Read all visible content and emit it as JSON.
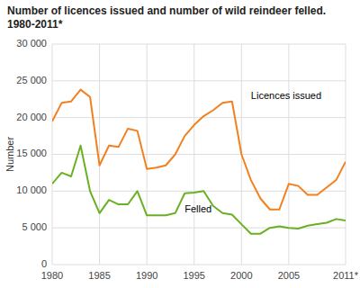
{
  "chart_data": {
    "type": "line",
    "title": "Number of licences issued and number of wild reindeer felled. 1980-2011*",
    "y_label": "Number",
    "x": [
      1980,
      1981,
      1982,
      1983,
      1984,
      1985,
      1986,
      1987,
      1988,
      1989,
      1990,
      1991,
      1992,
      1993,
      1994,
      1995,
      1996,
      1997,
      1998,
      1999,
      2000,
      2001,
      2002,
      2003,
      2004,
      2005,
      2006,
      2007,
      2008,
      2009,
      2010,
      2011
    ],
    "series": [
      {
        "color": "#f28020",
        "values": [
          19500,
          22000,
          22200,
          23800,
          22800,
          13500,
          16200,
          16000,
          18500,
          18200,
          13000,
          13200,
          13500,
          15000,
          17500,
          19000,
          20200,
          21000,
          22000,
          22200,
          15000,
          11500,
          9000,
          7500,
          7500,
          11000,
          10700,
          9500,
          9500,
          10500,
          11500,
          14000
        ]
      },
      {
        "color": "#6ab023",
        "values": [
          11000,
          12500,
          12000,
          16200,
          10000,
          7000,
          8800,
          8200,
          8200,
          10000,
          6700,
          6700,
          6700,
          7000,
          9700,
          9800,
          10000,
          8000,
          7000,
          6800,
          5500,
          4200,
          4200,
          5000,
          5200,
          5000,
          4900,
          5300,
          5500,
          5700,
          6200,
          6000
        ]
      }
    ],
    "annotations": [
      {
        "text": "Licences issued",
        "x": 2001,
        "y": 22200
      },
      {
        "text": "Felled",
        "x": 1994,
        "y": 6700
      }
    ],
    "xlim": [
      1980,
      2011
    ],
    "xticks": [
      1980,
      1985,
      1990,
      1995,
      2000,
      2005,
      {
        "value": 2011,
        "label": "2011*"
      }
    ],
    "ylim": [
      0,
      30000
    ],
    "yticks": [
      0,
      {
        "value": 5000,
        "label": "5 000"
      },
      {
        "value": 10000,
        "label": "10 000"
      },
      {
        "value": 15000,
        "label": "15 000"
      },
      {
        "value": 20000,
        "label": "20 000"
      },
      {
        "value": 25000,
        "label": "25 000"
      },
      {
        "value": 30000,
        "label": "30 000"
      }
    ],
    "grid": true
  }
}
